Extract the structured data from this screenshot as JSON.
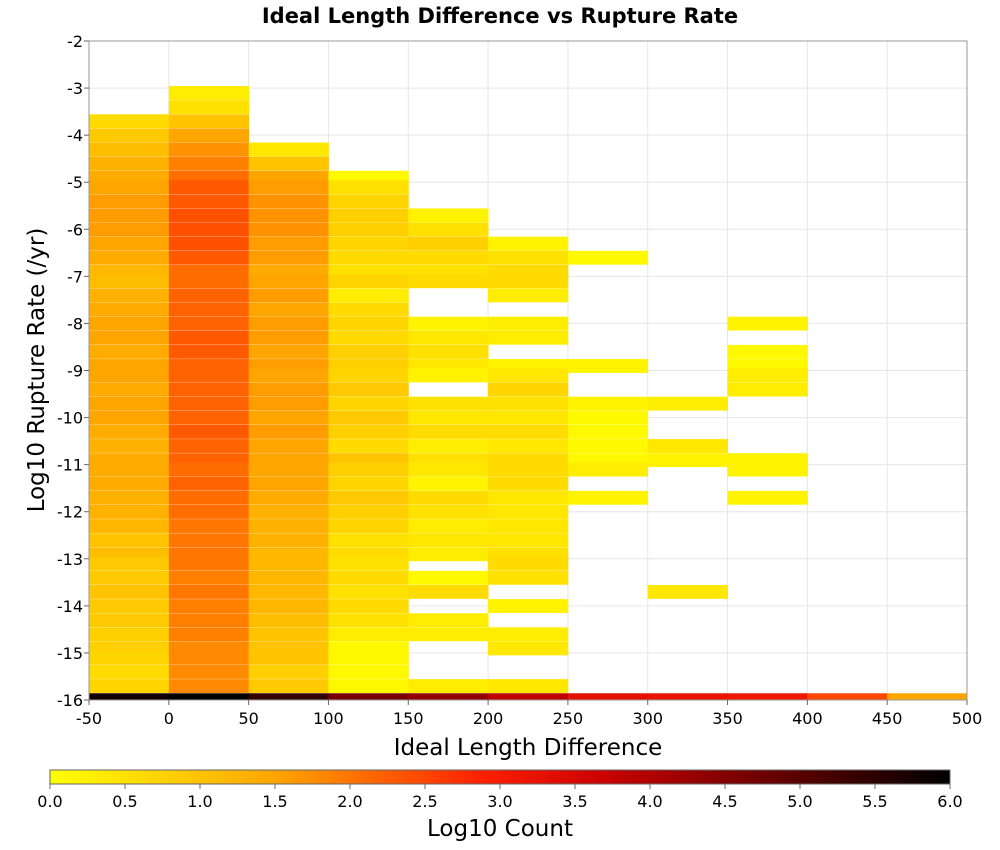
{
  "chart_data": {
    "type": "heatmap",
    "title": "Ideal Length Difference vs Rupture Rate",
    "xlabel": "Ideal Length Difference",
    "ylabel": "Log10 Rupture Rate (/yr)",
    "xlim": [
      -50,
      500
    ],
    "ylim": [
      -16,
      -2
    ],
    "x_ticks": [
      -50,
      0,
      50,
      100,
      150,
      200,
      250,
      300,
      350,
      400,
      450,
      500
    ],
    "y_ticks": [
      -2,
      -3,
      -4,
      -5,
      -6,
      -7,
      -8,
      -9,
      -10,
      -11,
      -12,
      -13,
      -14,
      -15,
      -16
    ],
    "x_bin_width": 50,
    "y_bin_height": 0.286,
    "grid": true,
    "colorbar": {
      "label": "Log10 Count",
      "range": [
        0,
        6
      ],
      "ticks": [
        "0.0",
        "0.5",
        "1.0",
        "1.5",
        "2.0",
        "2.5",
        "3.0",
        "3.5",
        "4.0",
        "4.5",
        "5.0",
        "5.5",
        "6.0"
      ],
      "colors": [
        "#ffff00",
        "#ffa500",
        "#ff2000",
        "#c80000",
        "#000000"
      ]
    },
    "columns": [
      {
        "x": -25,
        "cells": [
          {
            "y": -3.7,
            "v": 0.6
          },
          {
            "y": -4.0,
            "v": 0.9
          },
          {
            "y": -4.3,
            "v": 1.1
          },
          {
            "y": -4.6,
            "v": 1.3
          },
          {
            "y": -4.9,
            "v": 1.4
          },
          {
            "y": -5.1,
            "v": 1.5
          },
          {
            "y": -5.4,
            "v": 1.6
          },
          {
            "y": -5.7,
            "v": 1.6
          },
          {
            "y": -6.0,
            "v": 1.6
          },
          {
            "y": -6.3,
            "v": 1.5
          },
          {
            "y": -6.6,
            "v": 1.4
          },
          {
            "y": -6.9,
            "v": 1.2
          },
          {
            "y": -7.1,
            "v": 1.1
          },
          {
            "y": -7.4,
            "v": 1.3
          },
          {
            "y": -7.7,
            "v": 1.4
          },
          {
            "y": -8.0,
            "v": 1.5
          },
          {
            "y": -8.3,
            "v": 1.5
          },
          {
            "y": -8.6,
            "v": 1.4
          },
          {
            "y": -8.9,
            "v": 1.5
          },
          {
            "y": -9.1,
            "v": 1.5
          },
          {
            "y": -9.4,
            "v": 1.4
          },
          {
            "y": -9.7,
            "v": 1.5
          },
          {
            "y": -10.0,
            "v": 1.5
          },
          {
            "y": -10.3,
            "v": 1.4
          },
          {
            "y": -10.6,
            "v": 1.3
          },
          {
            "y": -10.9,
            "v": 1.4
          },
          {
            "y": -11.1,
            "v": 1.4
          },
          {
            "y": -11.4,
            "v": 1.4
          },
          {
            "y": -11.7,
            "v": 1.3
          },
          {
            "y": -12.0,
            "v": 1.3
          },
          {
            "y": -12.3,
            "v": 1.2
          },
          {
            "y": -12.6,
            "v": 1.0
          },
          {
            "y": -12.9,
            "v": 1.1
          },
          {
            "y": -13.1,
            "v": 0.9
          },
          {
            "y": -13.4,
            "v": 0.9
          },
          {
            "y": -13.7,
            "v": 1.0
          },
          {
            "y": -14.0,
            "v": 0.9
          },
          {
            "y": -14.3,
            "v": 0.9
          },
          {
            "y": -14.6,
            "v": 0.8
          },
          {
            "y": -14.9,
            "v": 0.8
          },
          {
            "y": -15.1,
            "v": 0.7
          },
          {
            "y": -15.4,
            "v": 0.6
          },
          {
            "y": -15.7,
            "v": 0.7
          },
          {
            "y": -16.0,
            "v": 5.8
          }
        ]
      },
      {
        "x": 25,
        "cells": [
          {
            "y": -3.1,
            "v": 0.3
          },
          {
            "y": -3.4,
            "v": 0.5
          },
          {
            "y": -3.7,
            "v": 1.0
          },
          {
            "y": -4.0,
            "v": 1.5
          },
          {
            "y": -4.3,
            "v": 1.7
          },
          {
            "y": -4.6,
            "v": 1.9
          },
          {
            "y": -4.9,
            "v": 2.1
          },
          {
            "y": -5.1,
            "v": 2.3
          },
          {
            "y": -5.4,
            "v": 2.3
          },
          {
            "y": -5.7,
            "v": 2.4
          },
          {
            "y": -6.0,
            "v": 2.4
          },
          {
            "y": -6.3,
            "v": 2.4
          },
          {
            "y": -6.6,
            "v": 2.3
          },
          {
            "y": -6.9,
            "v": 2.1
          },
          {
            "y": -7.1,
            "v": 2.1
          },
          {
            "y": -7.4,
            "v": 2.2
          },
          {
            "y": -7.7,
            "v": 2.2
          },
          {
            "y": -8.0,
            "v": 2.2
          },
          {
            "y": -8.3,
            "v": 2.3
          },
          {
            "y": -8.6,
            "v": 2.3
          },
          {
            "y": -8.9,
            "v": 2.2
          },
          {
            "y": -9.1,
            "v": 2.2
          },
          {
            "y": -9.4,
            "v": 2.2
          },
          {
            "y": -9.7,
            "v": 2.2
          },
          {
            "y": -10.0,
            "v": 2.2
          },
          {
            "y": -10.3,
            "v": 2.3
          },
          {
            "y": -10.6,
            "v": 2.2
          },
          {
            "y": -10.9,
            "v": 2.2
          },
          {
            "y": -11.1,
            "v": 2.1
          },
          {
            "y": -11.4,
            "v": 2.2
          },
          {
            "y": -11.7,
            "v": 2.1
          },
          {
            "y": -12.0,
            "v": 2.1
          },
          {
            "y": -12.3,
            "v": 2.0
          },
          {
            "y": -12.6,
            "v": 2.0
          },
          {
            "y": -12.9,
            "v": 2.0
          },
          {
            "y": -13.1,
            "v": 2.0
          },
          {
            "y": -13.4,
            "v": 1.9
          },
          {
            "y": -13.7,
            "v": 2.0
          },
          {
            "y": -14.0,
            "v": 1.9
          },
          {
            "y": -14.3,
            "v": 1.9
          },
          {
            "y": -14.6,
            "v": 1.9
          },
          {
            "y": -14.9,
            "v": 1.8
          },
          {
            "y": -15.1,
            "v": 1.8
          },
          {
            "y": -15.4,
            "v": 1.8
          },
          {
            "y": -15.7,
            "v": 1.8
          },
          {
            "y": -16.0,
            "v": 6.0
          }
        ]
      },
      {
        "x": 75,
        "cells": [
          {
            "y": -4.3,
            "v": 0.4
          },
          {
            "y": -4.6,
            "v": 1.0
          },
          {
            "y": -4.9,
            "v": 1.5
          },
          {
            "y": -5.1,
            "v": 1.6
          },
          {
            "y": -5.4,
            "v": 1.7
          },
          {
            "y": -5.7,
            "v": 1.7
          },
          {
            "y": -6.0,
            "v": 1.7
          },
          {
            "y": -6.3,
            "v": 1.6
          },
          {
            "y": -6.6,
            "v": 1.6
          },
          {
            "y": -6.9,
            "v": 1.4
          },
          {
            "y": -7.1,
            "v": 1.5
          },
          {
            "y": -7.4,
            "v": 1.6
          },
          {
            "y": -7.7,
            "v": 1.5
          },
          {
            "y": -8.0,
            "v": 1.6
          },
          {
            "y": -8.3,
            "v": 1.6
          },
          {
            "y": -8.6,
            "v": 1.5
          },
          {
            "y": -8.9,
            "v": 1.6
          },
          {
            "y": -9.1,
            "v": 1.5
          },
          {
            "y": -9.4,
            "v": 1.6
          },
          {
            "y": -9.7,
            "v": 1.6
          },
          {
            "y": -10.0,
            "v": 1.5
          },
          {
            "y": -10.3,
            "v": 1.6
          },
          {
            "y": -10.6,
            "v": 1.5
          },
          {
            "y": -10.9,
            "v": 1.5
          },
          {
            "y": -11.1,
            "v": 1.5
          },
          {
            "y": -11.4,
            "v": 1.5
          },
          {
            "y": -11.7,
            "v": 1.4
          },
          {
            "y": -12.0,
            "v": 1.3
          },
          {
            "y": -12.3,
            "v": 1.3
          },
          {
            "y": -12.6,
            "v": 1.3
          },
          {
            "y": -12.9,
            "v": 1.2
          },
          {
            "y": -13.1,
            "v": 1.2
          },
          {
            "y": -13.4,
            "v": 1.2
          },
          {
            "y": -13.7,
            "v": 1.2
          },
          {
            "y": -14.0,
            "v": 1.2
          },
          {
            "y": -14.3,
            "v": 1.1
          },
          {
            "y": -14.6,
            "v": 1.0
          },
          {
            "y": -14.9,
            "v": 1.0
          },
          {
            "y": -15.1,
            "v": 1.0
          },
          {
            "y": -15.4,
            "v": 0.8
          },
          {
            "y": -15.7,
            "v": 0.9
          },
          {
            "y": -16.0,
            "v": 5.4
          }
        ]
      },
      {
        "x": 125,
        "cells": [
          {
            "y": -4.9,
            "v": 0.1
          },
          {
            "y": -5.1,
            "v": 0.5
          },
          {
            "y": -5.4,
            "v": 0.7
          },
          {
            "y": -5.7,
            "v": 0.8
          },
          {
            "y": -6.0,
            "v": 0.8
          },
          {
            "y": -6.3,
            "v": 0.7
          },
          {
            "y": -6.6,
            "v": 0.6
          },
          {
            "y": -6.9,
            "v": 0.5
          },
          {
            "y": -7.1,
            "v": 0.7
          },
          {
            "y": -7.4,
            "v": 0.3
          },
          {
            "y": -7.7,
            "v": 0.6
          },
          {
            "y": -8.0,
            "v": 0.7
          },
          {
            "y": -8.3,
            "v": 0.6
          },
          {
            "y": -8.6,
            "v": 0.8
          },
          {
            "y": -8.9,
            "v": 0.8
          },
          {
            "y": -9.1,
            "v": 0.7
          },
          {
            "y": -9.4,
            "v": 0.9
          },
          {
            "y": -9.7,
            "v": 0.7
          },
          {
            "y": -10.0,
            "v": 0.9
          },
          {
            "y": -10.3,
            "v": 0.8
          },
          {
            "y": -10.6,
            "v": 0.6
          },
          {
            "y": -10.9,
            "v": 1.0
          },
          {
            "y": -11.1,
            "v": 0.8
          },
          {
            "y": -11.4,
            "v": 0.7
          },
          {
            "y": -11.7,
            "v": 0.9
          },
          {
            "y": -12.0,
            "v": 0.8
          },
          {
            "y": -12.3,
            "v": 0.7
          },
          {
            "y": -12.6,
            "v": 0.5
          },
          {
            "y": -12.9,
            "v": 0.6
          },
          {
            "y": -13.1,
            "v": 0.5
          },
          {
            "y": -13.4,
            "v": 0.6
          },
          {
            "y": -13.7,
            "v": 0.5
          },
          {
            "y": -14.0,
            "v": 0.6
          },
          {
            "y": -14.3,
            "v": 0.5
          },
          {
            "y": -14.6,
            "v": 0.3
          },
          {
            "y": -14.9,
            "v": 0.1
          },
          {
            "y": -15.1,
            "v": 0.1
          },
          {
            "y": -15.4,
            "v": 0.1
          },
          {
            "y": -15.7,
            "v": 0.1
          },
          {
            "y": -16.0,
            "v": 4.6
          }
        ]
      },
      {
        "x": 175,
        "cells": [
          {
            "y": -5.7,
            "v": 0.2
          },
          {
            "y": -6.0,
            "v": 0.5
          },
          {
            "y": -6.3,
            "v": 0.8
          },
          {
            "y": -6.6,
            "v": 0.6
          },
          {
            "y": -6.9,
            "v": 0.5
          },
          {
            "y": -7.1,
            "v": 0.6
          },
          {
            "y": -8.0,
            "v": 0.2
          },
          {
            "y": -8.3,
            "v": 0.4
          },
          {
            "y": -8.6,
            "v": 0.5
          },
          {
            "y": -8.9,
            "v": 0.4
          },
          {
            "y": -9.1,
            "v": 0.2
          },
          {
            "y": -9.7,
            "v": 0.5
          },
          {
            "y": -10.0,
            "v": 0.4
          },
          {
            "y": -10.3,
            "v": 0.6
          },
          {
            "y": -10.6,
            "v": 0.3
          },
          {
            "y": -10.9,
            "v": 0.5
          },
          {
            "y": -11.1,
            "v": 0.4
          },
          {
            "y": -11.4,
            "v": 0.2
          },
          {
            "y": -11.7,
            "v": 0.6
          },
          {
            "y": -12.0,
            "v": 0.5
          },
          {
            "y": -12.3,
            "v": 0.3
          },
          {
            "y": -12.6,
            "v": 0.4
          },
          {
            "y": -12.9,
            "v": 0.3
          },
          {
            "y": -13.4,
            "v": 0.1
          },
          {
            "y": -13.7,
            "v": 0.6
          },
          {
            "y": -14.3,
            "v": 0.3
          },
          {
            "y": -14.6,
            "v": 0.3
          },
          {
            "y": -15.7,
            "v": 0.3
          },
          {
            "y": -16.0,
            "v": 4.3
          }
        ]
      },
      {
        "x": 225,
        "cells": [
          {
            "y": -6.3,
            "v": 0.2
          },
          {
            "y": -6.6,
            "v": 0.5
          },
          {
            "y": -6.9,
            "v": 0.6
          },
          {
            "y": -7.1,
            "v": 0.6
          },
          {
            "y": -7.4,
            "v": 0.3
          },
          {
            "y": -8.0,
            "v": 0.3
          },
          {
            "y": -8.3,
            "v": 0.3
          },
          {
            "y": -8.9,
            "v": 0.2
          },
          {
            "y": -9.1,
            "v": 0.4
          },
          {
            "y": -9.4,
            "v": 0.7
          },
          {
            "y": -9.7,
            "v": 0.5
          },
          {
            "y": -10.0,
            "v": 0.4
          },
          {
            "y": -10.3,
            "v": 0.6
          },
          {
            "y": -10.6,
            "v": 0.4
          },
          {
            "y": -10.9,
            "v": 0.6
          },
          {
            "y": -11.1,
            "v": 0.6
          },
          {
            "y": -11.4,
            "v": 0.6
          },
          {
            "y": -11.7,
            "v": 0.4
          },
          {
            "y": -12.0,
            "v": 0.4
          },
          {
            "y": -12.3,
            "v": 0.4
          },
          {
            "y": -12.6,
            "v": 0.4
          },
          {
            "y": -12.9,
            "v": 0.5
          },
          {
            "y": -13.1,
            "v": 0.6
          },
          {
            "y": -13.4,
            "v": 0.5
          },
          {
            "y": -14.0,
            "v": 0.2
          },
          {
            "y": -14.6,
            "v": 0.3
          },
          {
            "y": -14.9,
            "v": 0.4
          },
          {
            "y": -15.7,
            "v": 0.4
          },
          {
            "y": -16.0,
            "v": 3.8
          }
        ]
      },
      {
        "x": 275,
        "cells": [
          {
            "y": -6.6,
            "v": 0.1
          },
          {
            "y": -8.9,
            "v": 0.2
          },
          {
            "y": -9.7,
            "v": 0.2
          },
          {
            "y": -10.0,
            "v": 0.1
          },
          {
            "y": -10.3,
            "v": 0.1
          },
          {
            "y": -10.6,
            "v": 0.1
          },
          {
            "y": -10.9,
            "v": 0.1
          },
          {
            "y": -11.1,
            "v": 0.3
          },
          {
            "y": -11.7,
            "v": 0.2
          },
          {
            "y": -16.0,
            "v": 3.3
          }
        ]
      },
      {
        "x": 325,
        "cells": [
          {
            "y": -9.7,
            "v": 0.3
          },
          {
            "y": -10.6,
            "v": 0.4
          },
          {
            "y": -10.9,
            "v": 0.2
          },
          {
            "y": -13.7,
            "v": 0.4
          },
          {
            "y": -16.0,
            "v": 3.2
          }
        ]
      },
      {
        "x": 375,
        "cells": [
          {
            "y": -8.0,
            "v": 0.2
          },
          {
            "y": -8.6,
            "v": 0.1
          },
          {
            "y": -8.9,
            "v": 0.1
          },
          {
            "y": -9.1,
            "v": 0.3
          },
          {
            "y": -9.4,
            "v": 0.3
          },
          {
            "y": -10.9,
            "v": 0.2
          },
          {
            "y": -11.1,
            "v": 0.2
          },
          {
            "y": -11.7,
            "v": 0.2
          },
          {
            "y": -16.0,
            "v": 3.1
          }
        ]
      },
      {
        "x": 425,
        "cells": [
          {
            "y": -16.0,
            "v": 2.5
          }
        ]
      },
      {
        "x": 475,
        "cells": [
          {
            "y": -16.0,
            "v": 1.5
          }
        ]
      }
    ]
  }
}
